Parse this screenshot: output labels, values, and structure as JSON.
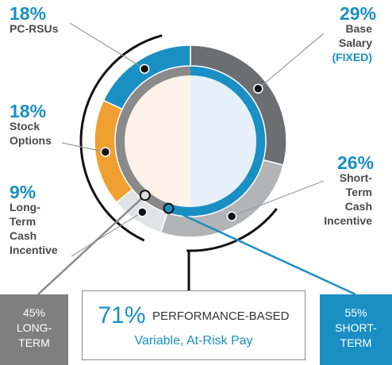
{
  "chart_data": {
    "type": "donut",
    "segments": [
      {
        "name": "Base Salary (FIXED)",
        "value": 29,
        "color": "#6d6e70"
      },
      {
        "name": "Short-Term Cash Incentive",
        "value": 26,
        "color": "#b3b4b6"
      },
      {
        "name": "Long-Term Cash Incentive",
        "value": 9,
        "color": "#e2e3e4"
      },
      {
        "name": "Stock Options",
        "value": 18,
        "color": "#f0a030"
      },
      {
        "name": "PC-RSUs",
        "value": 18,
        "color": "#1a8fc4"
      }
    ],
    "inner_ring": [
      {
        "name": "LONG-TERM",
        "value": 45,
        "color": "#8a8a8a"
      },
      {
        "name": "SHORT-TERM",
        "value": 55,
        "color": "#1a8fc4"
      }
    ]
  },
  "labels": {
    "pc_rsus": {
      "pct": "18%",
      "lines": [
        "PC-RSUs"
      ]
    },
    "stock_options": {
      "pct": "18%",
      "lines": [
        "Stock",
        "Options"
      ]
    },
    "ltci": {
      "pct": "9%",
      "lines": [
        "Long-",
        "Term",
        "Cash",
        "Incentive"
      ]
    },
    "base_salary": {
      "pct": "29%",
      "lines": [
        "Base",
        "Salary",
        "(FIXED)"
      ]
    },
    "stci": {
      "pct": "26%",
      "lines": [
        "Short-",
        "Term",
        "Cash",
        "Incentive"
      ]
    }
  },
  "boxes": {
    "long_term": {
      "pct": "45%",
      "lines": [
        "LONG-",
        "TERM"
      ]
    },
    "short_term": {
      "pct": "55%",
      "lines": [
        "SHORT-",
        "TERM"
      ]
    },
    "performance": {
      "pct": "71%",
      "label": "PERFORMANCE-BASED",
      "sub": "Variable, At-Risk Pay"
    }
  },
  "colors": {
    "accent_blue": "#1a8fc4",
    "orange": "#f0a030",
    "dark_gray": "#6d6e70",
    "text_gray": "#4a4a4a"
  }
}
